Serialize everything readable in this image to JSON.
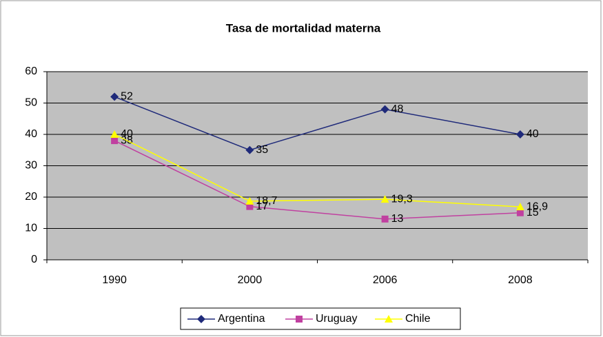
{
  "chart_data": {
    "type": "line",
    "title": "Tasa de mortalidad materna",
    "categories": [
      "1990",
      "2000",
      "2006",
      "2008"
    ],
    "series": [
      {
        "name": "Argentina",
        "color": "#1f2a7a",
        "marker": "diamond",
        "values": [
          52,
          35,
          48,
          40
        ]
      },
      {
        "name": "Uruguay",
        "color": "#c040a0",
        "marker": "square",
        "values": [
          38,
          17,
          13,
          15
        ]
      },
      {
        "name": "Chile",
        "color": "#ffff00",
        "marker": "triangle",
        "values": [
          40,
          18.7,
          19.3,
          16.9
        ],
        "value_labels": [
          "40",
          "18,7",
          "19,3",
          "16,9"
        ]
      }
    ],
    "ylim": [
      0,
      60
    ],
    "yticks": [
      0,
      10,
      20,
      30,
      40,
      50,
      60
    ],
    "grid": true,
    "legend": "bottom"
  }
}
